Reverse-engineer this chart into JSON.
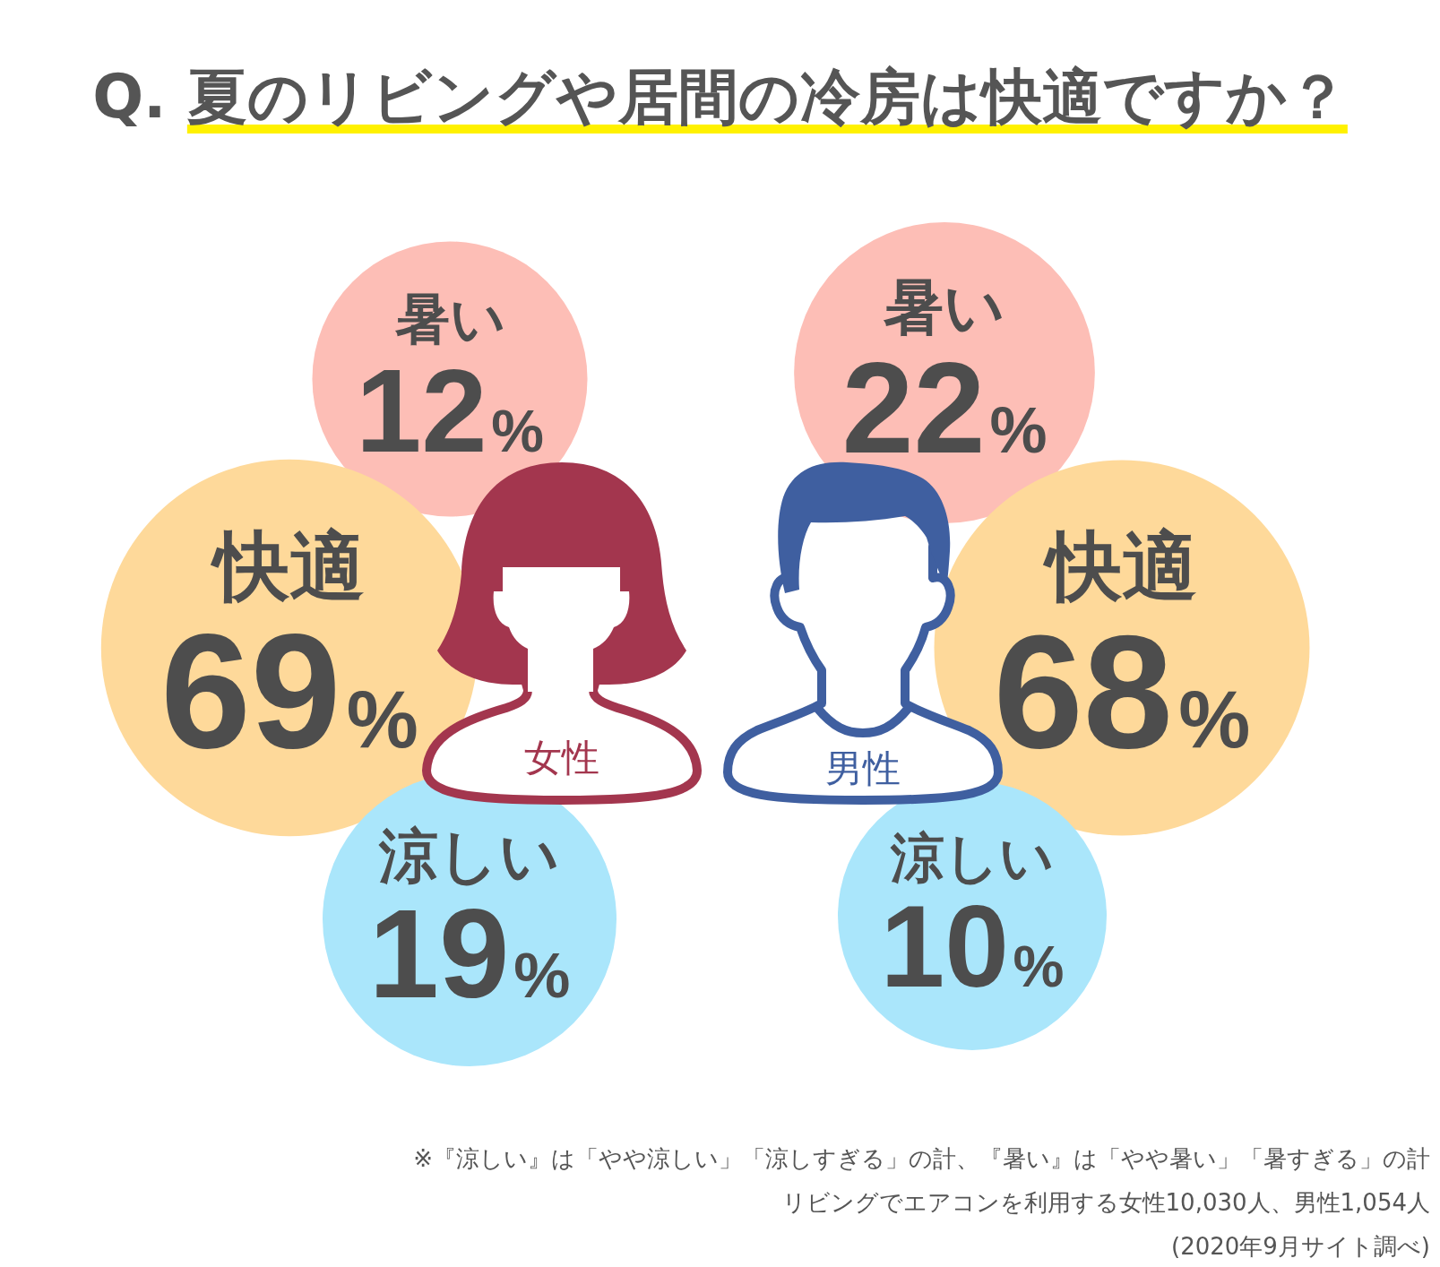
{
  "chart_data": {
    "type": "other",
    "title": "Q. 夏のリビングや居間の冷房は快適ですか？",
    "categories": [
      "暑い",
      "快適",
      "涼しい"
    ],
    "series": [
      {
        "name": "女性",
        "colors": [
          "#fdbeb6",
          "#fed99a",
          "#aae6fb"
        ],
        "values": [
          12,
          69,
          19
        ],
        "value_labels": [
          "12%",
          "69%",
          "19%"
        ]
      },
      {
        "name": "男性",
        "colors": [
          "#fdbeb6",
          "#fed99a",
          "#aae6fb"
        ],
        "values": [
          22,
          68,
          10
        ],
        "value_labels": [
          "22%",
          "68%",
          "10%"
        ]
      }
    ],
    "annotations": [
      "※『涼しい』は「やや涼しい」「涼しすぎる」の計、『暑い』は「やや暑い」「暑すぎる」の計",
      "リビングでエアコンを利用する女性10,030人、男性1,054人",
      "(2020年9月サイト調べ)"
    ]
  }
}
